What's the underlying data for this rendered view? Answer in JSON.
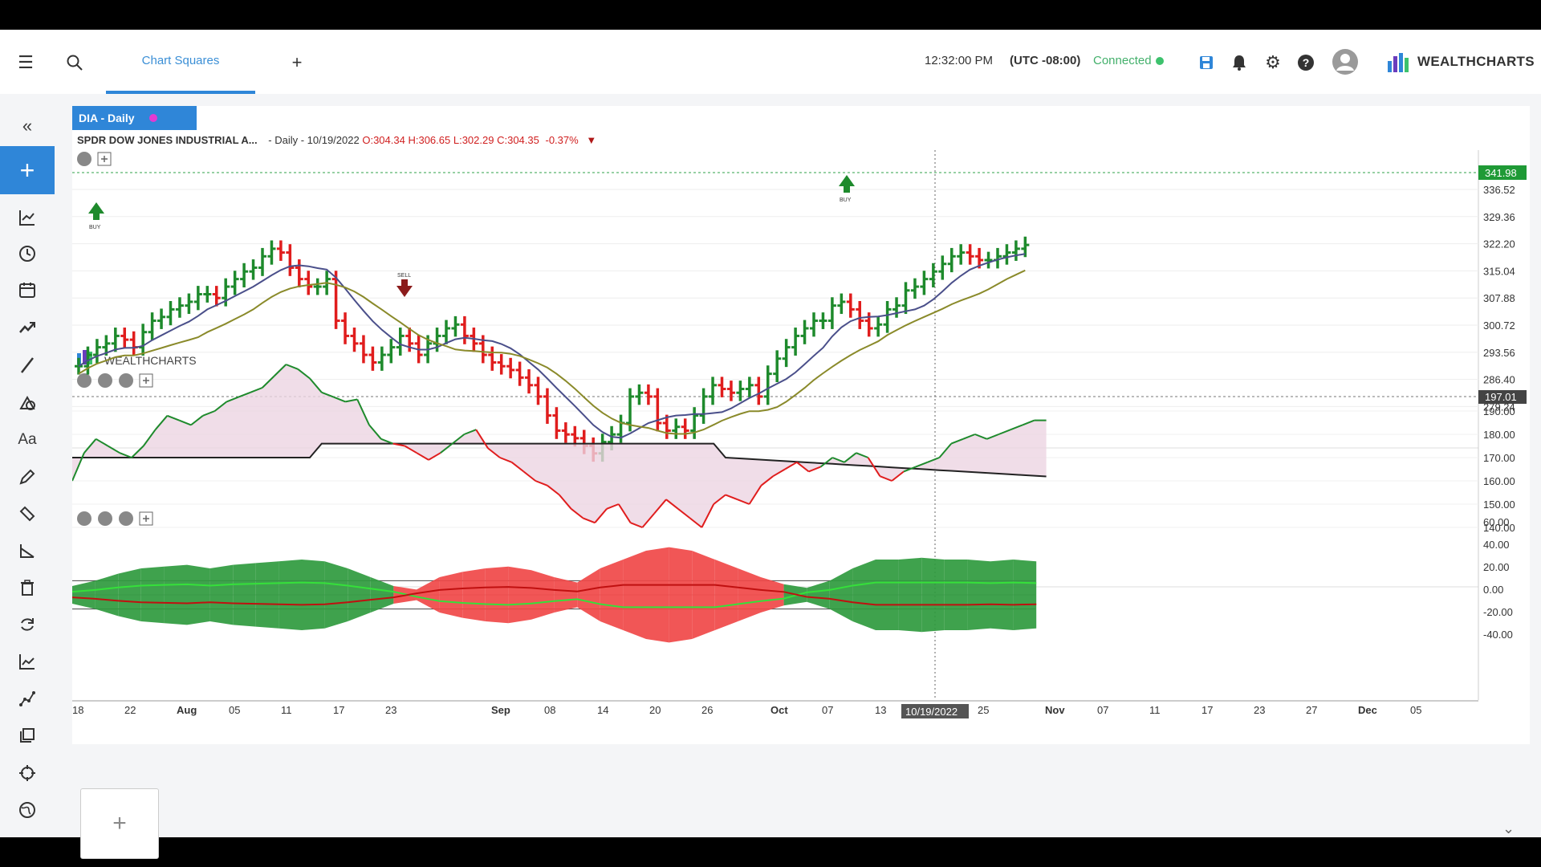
{
  "header": {
    "tab_label": "Chart Squares",
    "time": "12:32:00 PM",
    "timezone": "(UTC -08:00)",
    "connection_status": "Connected",
    "brand": "WEALTHCHARTS"
  },
  "chart": {
    "symbol_tab": "DIA - Daily",
    "name": "SPDR DOW JONES INDUSTRIAL A...",
    "interval_date": "- Daily - 10/19/2022",
    "open": "O:304.34",
    "high": "H:306.65",
    "low": "L:302.29",
    "close": "C:304.35",
    "change": "-0.37%",
    "watermark": "WEALTHCHARTS",
    "price_axis": [
      "336.52",
      "329.36",
      "322.20",
      "315.04",
      "307.88",
      "300.72",
      "293.56",
      "286.40",
      "279.24"
    ],
    "last_price": "341.98",
    "osc_axis": [
      "190.00",
      "180.00",
      "170.00",
      "160.00",
      "150.00",
      "140.00"
    ],
    "osc_last": "197.01",
    "hist_axis": [
      "60.00",
      "40.00",
      "20.00",
      "0.00",
      "-20.00",
      "-40.00"
    ],
    "x_axis": [
      "18",
      "22",
      "Aug",
      "05",
      "11",
      "17",
      "23",
      "Sep",
      "08",
      "14",
      "20",
      "26",
      "Oct",
      "07",
      "13",
      "25",
      "Nov",
      "07",
      "11",
      "17",
      "23",
      "27",
      "Dec",
      "05"
    ],
    "crosshair_date": "10/19/2022",
    "signals": {
      "buy": "BUY",
      "sell": "SELL"
    },
    "colors": {
      "up": "#1e8a2c",
      "down": "#e01d1d",
      "light_up": "#3de24c",
      "light_down": "#f58fa7",
      "ma_fast": "#4a4f8a",
      "ma_slow": "#8a8a2a",
      "accent": "#2f86d8"
    }
  },
  "add_square_label": "+"
}
